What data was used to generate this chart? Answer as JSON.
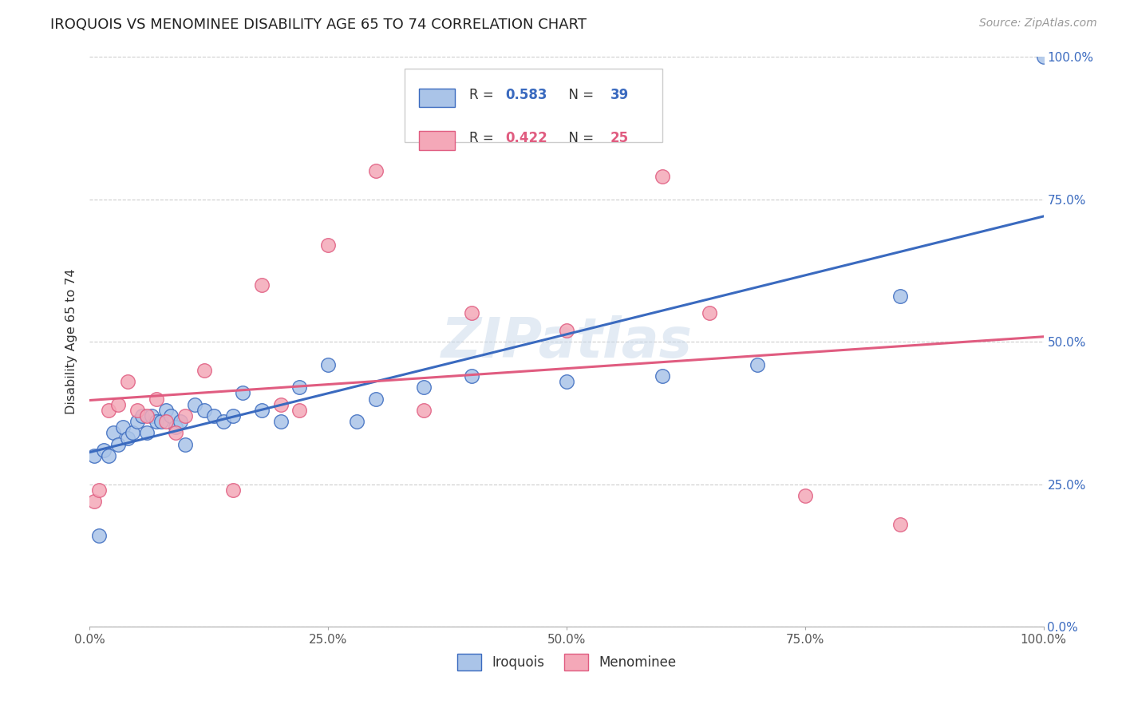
{
  "title": "IROQUOIS VS MENOMINEE DISABILITY AGE 65 TO 74 CORRELATION CHART",
  "source": "Source: ZipAtlas.com",
  "ylabel": "Disability Age 65 to 74",
  "iroquois_R": 0.583,
  "iroquois_N": 39,
  "menominee_R": 0.422,
  "menominee_N": 25,
  "iroquois_color": "#aac4e8",
  "menominee_color": "#f4a8b8",
  "iroquois_line_color": "#3a6abf",
  "menominee_line_color": "#e05c80",
  "watermark": "ZIPatlas",
  "iroquois_x": [
    0.5,
    1.0,
    1.5,
    2.0,
    2.5,
    3.0,
    3.5,
    4.0,
    4.5,
    5.0,
    5.5,
    6.0,
    6.5,
    7.0,
    7.5,
    8.0,
    8.5,
    9.0,
    9.5,
    10.0,
    11.0,
    12.0,
    13.0,
    14.0,
    15.0,
    16.0,
    18.0,
    20.0,
    22.0,
    25.0,
    28.0,
    30.0,
    35.0,
    40.0,
    50.0,
    60.0,
    70.0,
    85.0,
    100.0
  ],
  "iroquois_y": [
    30.0,
    16.0,
    31.0,
    30.0,
    34.0,
    32.0,
    35.0,
    33.0,
    34.0,
    36.0,
    37.0,
    34.0,
    37.0,
    36.0,
    36.0,
    38.0,
    37.0,
    35.0,
    36.0,
    32.0,
    39.0,
    38.0,
    37.0,
    36.0,
    37.0,
    41.0,
    38.0,
    36.0,
    42.0,
    46.0,
    36.0,
    40.0,
    42.0,
    44.0,
    43.0,
    44.0,
    46.0,
    58.0,
    100.0
  ],
  "menominee_x": [
    0.5,
    1.0,
    2.0,
    3.0,
    4.0,
    5.0,
    6.0,
    7.0,
    8.0,
    9.0,
    10.0,
    12.0,
    15.0,
    18.0,
    20.0,
    22.0,
    25.0,
    30.0,
    35.0,
    40.0,
    50.0,
    60.0,
    65.0,
    75.0,
    85.0
  ],
  "menominee_y": [
    22.0,
    24.0,
    38.0,
    39.0,
    43.0,
    38.0,
    37.0,
    40.0,
    36.0,
    34.0,
    37.0,
    45.0,
    24.0,
    60.0,
    39.0,
    38.0,
    67.0,
    80.0,
    38.0,
    55.0,
    52.0,
    79.0,
    55.0,
    23.0,
    18.0
  ],
  "xlim": [
    0,
    100
  ],
  "ylim": [
    0,
    100
  ],
  "yticks": [
    0,
    25,
    50,
    75,
    100
  ],
  "ytick_labels": [
    "0.0%",
    "25.0%",
    "50.0%",
    "75.0%",
    "100.0%"
  ],
  "xticks": [
    0,
    25,
    50,
    75,
    100
  ],
  "xtick_labels": [
    "0.0%",
    "25.0%",
    "50.0%",
    "75.0%",
    "100.0%"
  ]
}
